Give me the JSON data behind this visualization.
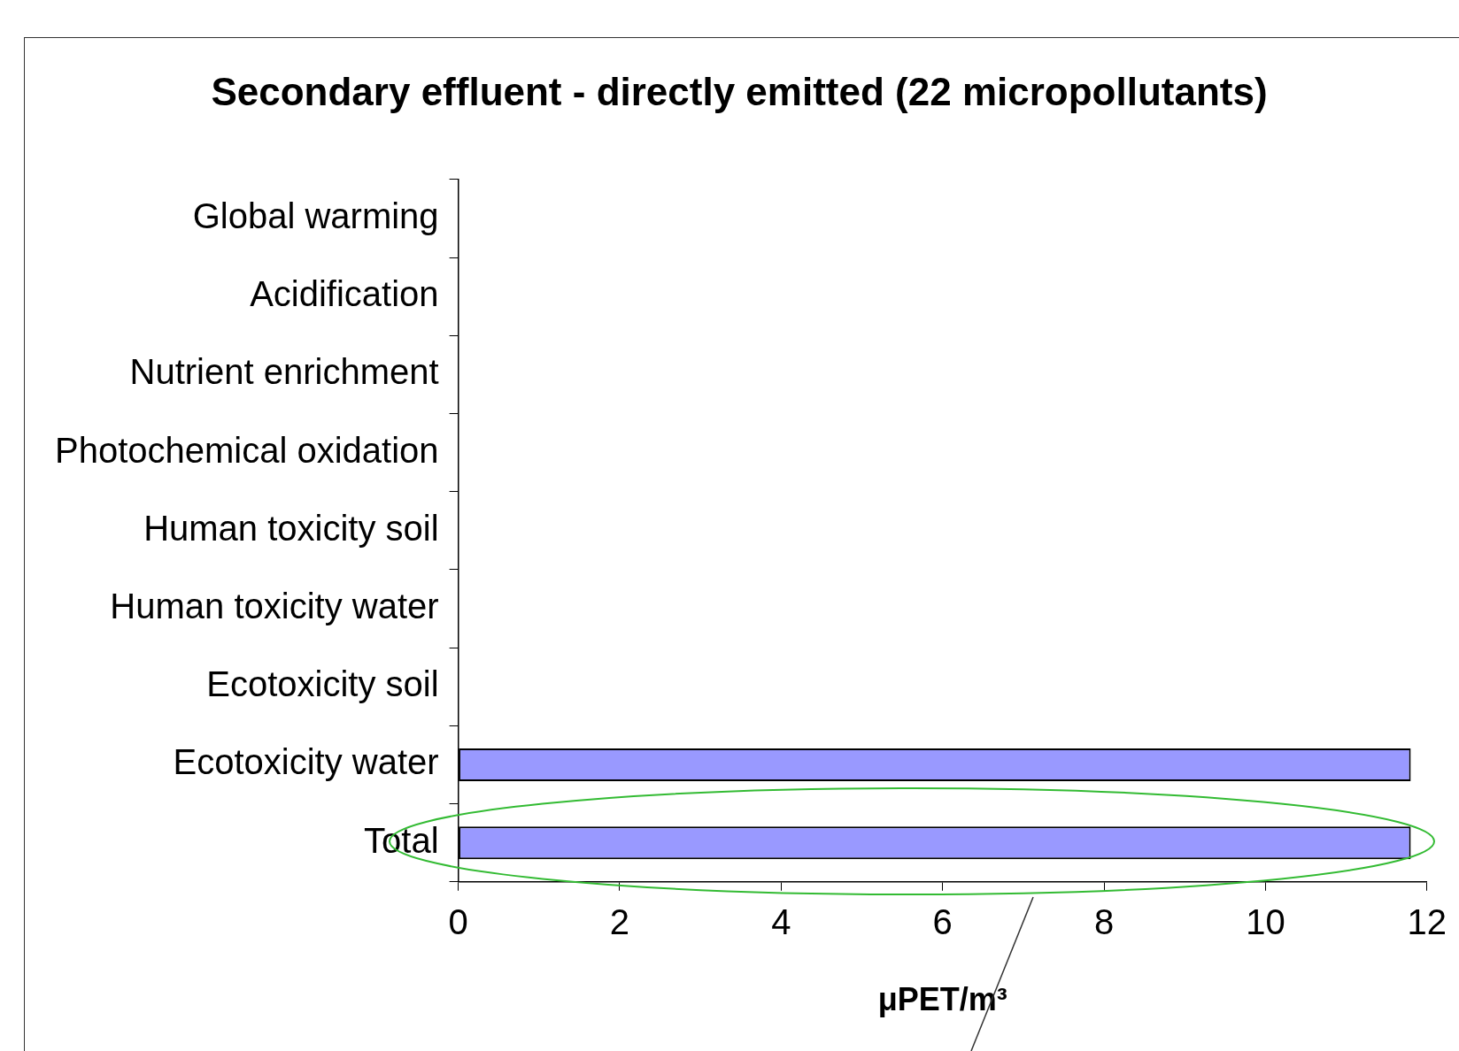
{
  "chart_data": {
    "type": "bar",
    "orientation": "horizontal",
    "title": "Secondary effluent - directly emitted (22 micropollutants)",
    "xlabel": "μPET/m³",
    "categories": [
      "Global warming",
      "Acidification",
      "Nutrient enrichment",
      "Photochemical oxidation",
      "Human toxicity soil",
      "Human toxicity water",
      "Ecotoxicity soil",
      "Ecotoxicity water",
      "Total"
    ],
    "values": [
      0,
      0,
      0,
      0,
      0,
      0,
      0,
      11.8,
      11.8
    ],
    "color": "#9999ff",
    "xlim": [
      0,
      12
    ],
    "xticks": [
      0,
      2,
      4,
      6,
      8,
      10,
      12
    ]
  }
}
